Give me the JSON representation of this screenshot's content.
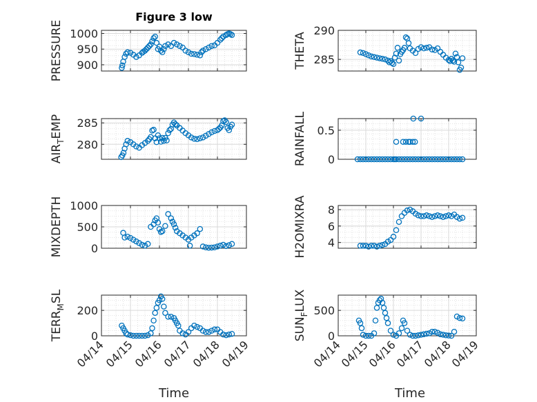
{
  "figure": {
    "title": "Figure 3 low",
    "background": "#ffffff"
  },
  "style": {
    "marker_color": "#0072BD",
    "grid_color": "#d9d9d9",
    "axis_color": "#262626"
  },
  "chart_data": [
    {
      "type": "scatter",
      "marker": "circle",
      "ylabel": "PRESSURE",
      "xlim": [
        "04/14",
        "04/19"
      ],
      "xtick_labels": [
        "04/14",
        "04/15",
        "04/16",
        "04/17",
        "04/18",
        "04/19"
      ],
      "ylim": [
        880,
        1010
      ],
      "yticks": [
        900,
        950,
        1000
      ],
      "series": [
        {
          "x": [
            14.7,
            14.72,
            14.75,
            14.8,
            14.85,
            14.9,
            15.0,
            15.1,
            15.2,
            15.3,
            15.4,
            15.45,
            15.5,
            15.55,
            15.6,
            15.65,
            15.7,
            15.75,
            15.8,
            15.85,
            15.9,
            15.95,
            16.0,
            16.05,
            16.1,
            16.15,
            16.2,
            16.3,
            16.4,
            16.5,
            16.6,
            16.7,
            16.8,
            16.9,
            17.0,
            17.1,
            17.2,
            17.3,
            17.4,
            17.45,
            17.5,
            17.6,
            17.7,
            17.8,
            17.9,
            18.0,
            18.1,
            18.15,
            18.2,
            18.3,
            18.35,
            18.4,
            18.45,
            18.5
          ],
          "y": [
            890,
            898,
            910,
            925,
            935,
            940,
            938,
            932,
            925,
            930,
            938,
            942,
            945,
            950,
            955,
            960,
            965,
            975,
            985,
            990,
            970,
            950,
            958,
            945,
            940,
            950,
            960,
            965,
            960,
            970,
            965,
            960,
            955,
            945,
            940,
            935,
            934,
            932,
            930,
            940,
            945,
            950,
            955,
            960,
            962,
            970,
            980,
            985,
            990,
            995,
            998,
            1000,
            998,
            995
          ]
        }
      ]
    },
    {
      "type": "scatter",
      "marker": "circle",
      "ylabel": "THETA",
      "xlim": [
        "04/14",
        "04/19"
      ],
      "xtick_labels": [
        "04/14",
        "04/15",
        "04/16",
        "04/17",
        "04/18",
        "04/19"
      ],
      "ylim": [
        283,
        290
      ],
      "yticks": [
        285,
        290
      ],
      "series": [
        {
          "x": [
            14.8,
            14.9,
            15.0,
            15.1,
            15.2,
            15.3,
            15.4,
            15.5,
            15.6,
            15.7,
            15.8,
            15.85,
            15.9,
            15.95,
            16.0,
            16.05,
            16.1,
            16.15,
            16.2,
            16.25,
            16.3,
            16.35,
            16.4,
            16.45,
            16.5,
            16.55,
            16.6,
            16.7,
            16.8,
            16.9,
            17.0,
            17.1,
            17.2,
            17.3,
            17.4,
            17.5,
            17.6,
            17.7,
            17.8,
            17.9,
            18.0,
            18.05,
            18.1,
            18.15,
            18.2,
            18.25,
            18.3,
            18.35,
            18.4,
            18.45,
            18.5
          ],
          "y": [
            286.2,
            286.1,
            285.9,
            285.7,
            285.5,
            285.4,
            285.3,
            285.2,
            285.1,
            285.0,
            284.8,
            284.5,
            284.7,
            284.4,
            284.2,
            285.3,
            286.0,
            287.0,
            284.8,
            285.9,
            286.3,
            286.6,
            287.0,
            288.8,
            288.6,
            287.8,
            286.9,
            286.5,
            286.1,
            286.8,
            287.1,
            286.9,
            287.0,
            287.1,
            286.7,
            286.6,
            286.9,
            286.3,
            285.8,
            285.3,
            284.9,
            284.7,
            285.1,
            284.8,
            284.6,
            286.0,
            285.4,
            284.5,
            283.2,
            283.6,
            285.2
          ]
        }
      ]
    },
    {
      "type": "scatter",
      "marker": "circle",
      "ylabel": "AIR_TEMP",
      "xlim": [
        "04/14",
        "04/19"
      ],
      "xtick_labels": [
        "04/14",
        "04/15",
        "04/16",
        "04/17",
        "04/18",
        "04/19"
      ],
      "ylim": [
        276.5,
        286
      ],
      "yticks": [
        280,
        285
      ],
      "series": [
        {
          "x": [
            14.68,
            14.72,
            14.76,
            14.8,
            14.85,
            14.9,
            15.0,
            15.1,
            15.2,
            15.3,
            15.4,
            15.5,
            15.6,
            15.65,
            15.7,
            15.75,
            15.8,
            15.85,
            15.9,
            15.95,
            16.0,
            16.05,
            16.1,
            16.15,
            16.2,
            16.25,
            16.3,
            16.35,
            16.4,
            16.45,
            16.5,
            16.55,
            16.6,
            16.7,
            16.8,
            16.9,
            17.0,
            17.1,
            17.2,
            17.3,
            17.4,
            17.5,
            17.6,
            17.7,
            17.8,
            17.9,
            18.0,
            18.05,
            18.1,
            18.15,
            18.2,
            18.25,
            18.3,
            18.35,
            18.4,
            18.45,
            18.5
          ],
          "y": [
            277.0,
            277.4,
            278.0,
            279.0,
            280.0,
            280.8,
            280.5,
            280.0,
            279.5,
            279.2,
            279.8,
            280.3,
            280.8,
            281.2,
            281.7,
            283.2,
            283.4,
            281.4,
            280.5,
            282.1,
            281.4,
            280.6,
            281.5,
            280.8,
            281.5,
            280.9,
            282.6,
            283.3,
            283.6,
            284.6,
            285.1,
            284.7,
            284.4,
            283.8,
            283.2,
            282.6,
            282.1,
            281.6,
            281.3,
            281.2,
            281.4,
            281.6,
            282.0,
            282.4,
            282.8,
            283.1,
            283.3,
            283.6,
            283.9,
            284.4,
            285.4,
            285.6,
            285.2,
            283.8,
            283.3,
            284.1,
            284.6
          ]
        }
      ]
    },
    {
      "type": "scatter",
      "marker": "circle",
      "ylabel": "RAINFALL",
      "xlim": [
        "04/14",
        "04/19"
      ],
      "xtick_labels": [
        "04/14",
        "04/15",
        "04/16",
        "04/17",
        "04/18",
        "04/19"
      ],
      "ylim": [
        0,
        0.7
      ],
      "yticks": [
        0,
        0.5
      ],
      "series": [
        {
          "x": [
            14.7,
            14.8,
            14.9,
            15.0,
            15.1,
            15.2,
            15.3,
            15.4,
            15.5,
            15.6,
            15.7,
            15.8,
            15.9,
            16.0,
            16.05,
            16.1,
            16.2,
            16.3,
            16.4,
            16.5,
            16.6,
            16.7,
            16.8,
            16.9,
            17.0,
            17.1,
            17.2,
            17.3,
            17.4,
            17.5,
            17.6,
            17.7,
            17.8,
            17.9,
            18.0,
            18.1,
            18.2,
            18.3,
            18.4,
            18.5,
            16.1,
            16.35,
            16.45,
            16.55,
            16.6,
            16.7,
            16.78,
            16.72,
            17.0
          ],
          "y": [
            0,
            0,
            0,
            0,
            0,
            0,
            0,
            0,
            0,
            0,
            0,
            0,
            0,
            0,
            0,
            0,
            0,
            0,
            0,
            0,
            0,
            0,
            0,
            0,
            0,
            0,
            0,
            0,
            0,
            0,
            0,
            0,
            0,
            0,
            0,
            0,
            0,
            0,
            0,
            0,
            0.3,
            0.3,
            0.3,
            0.3,
            0.3,
            0.3,
            0.3,
            0.7,
            0.7
          ]
        }
      ]
    },
    {
      "type": "scatter",
      "marker": "circle",
      "ylabel": "MIXDEPTH",
      "xlim": [
        "04/14",
        "04/19"
      ],
      "xtick_labels": [
        "04/14",
        "04/15",
        "04/16",
        "04/17",
        "04/18",
        "04/19"
      ],
      "ylim": [
        0,
        1000
      ],
      "yticks": [
        0,
        500,
        1000
      ],
      "series": [
        {
          "x": [
            14.75,
            14.8,
            14.9,
            15.0,
            15.1,
            15.2,
            15.3,
            15.4,
            15.5,
            15.6,
            15.7,
            15.8,
            15.85,
            15.9,
            15.95,
            16.0,
            16.05,
            16.1,
            16.2,
            16.3,
            16.4,
            16.45,
            16.5,
            16.55,
            16.6,
            16.7,
            16.8,
            16.9,
            17.0,
            17.05,
            17.1,
            17.2,
            17.3,
            17.4,
            17.5,
            17.6,
            17.7,
            17.8,
            17.9,
            18.0,
            18.1,
            18.2,
            18.3,
            18.4,
            18.5
          ],
          "y": [
            360,
            250,
            270,
            240,
            200,
            160,
            120,
            80,
            60,
            100,
            500,
            560,
            650,
            700,
            600,
            450,
            380,
            400,
            520,
            800,
            700,
            620,
            560,
            480,
            400,
            350,
            300,
            250,
            200,
            60,
            250,
            300,
            350,
            450,
            40,
            20,
            10,
            15,
            20,
            40,
            60,
            80,
            50,
            70,
            100
          ]
        }
      ]
    },
    {
      "type": "scatter",
      "marker": "circle",
      "ylabel": "H2OMIXRA",
      "xlim": [
        "04/14",
        "04/19"
      ],
      "xtick_labels": [
        "04/14",
        "04/15",
        "04/16",
        "04/17",
        "04/18",
        "04/19"
      ],
      "ylim": [
        3.3,
        8.5
      ],
      "yticks": [
        4,
        6,
        8
      ],
      "series": [
        {
          "x": [
            14.8,
            14.9,
            15.0,
            15.1,
            15.2,
            15.3,
            15.4,
            15.5,
            15.6,
            15.7,
            15.8,
            15.9,
            16.0,
            16.1,
            16.2,
            16.3,
            16.4,
            16.5,
            16.6,
            16.7,
            16.8,
            16.9,
            17.0,
            17.1,
            17.2,
            17.3,
            17.4,
            17.5,
            17.6,
            17.7,
            17.8,
            17.9,
            18.0,
            18.1,
            18.2,
            18.3,
            18.4,
            18.5
          ],
          "y": [
            3.6,
            3.6,
            3.6,
            3.5,
            3.6,
            3.6,
            3.5,
            3.6,
            3.7,
            3.8,
            4.1,
            4.3,
            4.7,
            5.5,
            6.5,
            7.2,
            7.6,
            7.9,
            8.0,
            7.8,
            7.5,
            7.3,
            7.2,
            7.2,
            7.3,
            7.2,
            7.1,
            7.2,
            7.3,
            7.2,
            7.1,
            7.2,
            7.3,
            7.2,
            7.4,
            7.1,
            6.9,
            7.0
          ]
        }
      ]
    },
    {
      "type": "scatter",
      "marker": "circle",
      "ylabel": "TERR_MSL",
      "xlim": [
        "04/14",
        "04/19"
      ],
      "xtick_labels": [
        "04/14",
        "04/15",
        "04/16",
        "04/17",
        "04/18",
        "04/19"
      ],
      "ylim": [
        0,
        320
      ],
      "yticks": [
        0,
        200
      ],
      "series": [
        {
          "x": [
            14.7,
            14.75,
            14.8,
            14.85,
            14.9,
            15.0,
            15.1,
            15.2,
            15.3,
            15.4,
            15.5,
            15.6,
            15.7,
            15.75,
            15.8,
            15.85,
            15.9,
            15.95,
            16.0,
            16.05,
            16.1,
            16.15,
            16.2,
            16.3,
            16.4,
            16.5,
            16.55,
            16.6,
            16.65,
            16.7,
            16.8,
            16.9,
            17.0,
            17.1,
            17.2,
            17.3,
            17.4,
            17.5,
            17.6,
            17.7,
            17.8,
            17.9,
            18.0,
            18.1,
            18.2,
            18.3,
            18.4,
            18.5
          ],
          "y": [
            80,
            60,
            40,
            20,
            10,
            5,
            0,
            0,
            0,
            0,
            0,
            5,
            20,
            60,
            120,
            180,
            220,
            260,
            280,
            310,
            290,
            230,
            180,
            150,
            150,
            140,
            120,
            100,
            80,
            40,
            20,
            10,
            30,
            60,
            80,
            70,
            60,
            40,
            30,
            30,
            40,
            50,
            50,
            30,
            10,
            5,
            10,
            15
          ]
        }
      ]
    },
    {
      "type": "scatter",
      "marker": "circle",
      "ylabel": "SUN_FLUX",
      "xlim": [
        "04/14",
        "04/19"
      ],
      "xtick_labels": [
        "04/14",
        "04/15",
        "04/16",
        "04/17",
        "04/18",
        "04/19"
      ],
      "ylim": [
        0,
        800
      ],
      "yticks": [
        0,
        500
      ],
      "series": [
        {
          "x": [
            14.75,
            14.8,
            14.85,
            14.9,
            15.0,
            15.1,
            15.2,
            15.3,
            15.35,
            15.4,
            15.45,
            15.5,
            15.55,
            15.6,
            15.65,
            15.7,
            15.75,
            15.8,
            15.9,
            16.0,
            16.1,
            16.2,
            16.3,
            16.35,
            16.4,
            16.5,
            16.6,
            16.7,
            16.8,
            16.9,
            17.0,
            17.1,
            17.2,
            17.3,
            17.4,
            17.5,
            17.6,
            17.7,
            17.8,
            17.9,
            18.0,
            18.1,
            18.2,
            18.3,
            18.4,
            18.5
          ],
          "y": [
            300,
            250,
            150,
            20,
            0,
            0,
            0,
            50,
            300,
            550,
            650,
            700,
            730,
            650,
            550,
            450,
            350,
            250,
            100,
            20,
            0,
            50,
            150,
            300,
            250,
            100,
            20,
            0,
            0,
            10,
            20,
            30,
            40,
            50,
            80,
            80,
            60,
            30,
            20,
            10,
            5,
            0,
            80,
            380,
            350,
            340
          ]
        }
      ]
    }
  ]
}
